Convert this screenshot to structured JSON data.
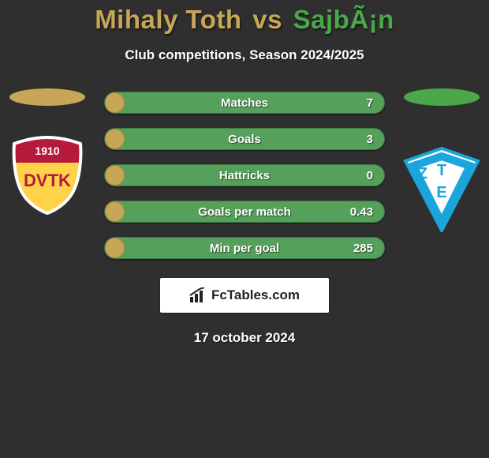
{
  "title": {
    "left_name": "Mihaly Toth",
    "vs": "vs",
    "right_name": "SajbÃ¡n",
    "left_color": "#c7a658",
    "right_color": "#4aa84a"
  },
  "subtitle": "Club competitions, Season 2024/2025",
  "left_side": {
    "ellipse_color": "#c7a658",
    "crest": {
      "band_top": "#b5193b",
      "band_bottom": "#ffd24a",
      "year": "1910",
      "text": "DVTK"
    }
  },
  "right_side": {
    "ellipse_color": "#4aa84a",
    "crest": {
      "blue": "#1aa6da",
      "letter_top": "T",
      "letter_bottom": "E",
      "letter_left": "Z"
    }
  },
  "stat_rows": {
    "bar_track_color": "#55a05a",
    "bar_border_color": "#3d7a42",
    "fill_color": "#c7a658",
    "fill_border_color": "#a58947",
    "items": [
      {
        "label": "Matches",
        "left": "",
        "right": "7",
        "fill_pct": 7
      },
      {
        "label": "Goals",
        "left": "",
        "right": "3",
        "fill_pct": 7
      },
      {
        "label": "Hattricks",
        "left": "",
        "right": "0",
        "fill_pct": 7
      },
      {
        "label": "Goals per match",
        "left": "",
        "right": "0.43",
        "fill_pct": 7
      },
      {
        "label": "Min per goal",
        "left": "",
        "right": "285",
        "fill_pct": 7
      }
    ]
  },
  "brand": {
    "text": "FcTables.com"
  },
  "date": "17 october 2024",
  "palette": {
    "page_bg": "#2f2f2f",
    "text": "#ffffff",
    "brand_bg": "#ffffff",
    "brand_text": "#222222"
  }
}
